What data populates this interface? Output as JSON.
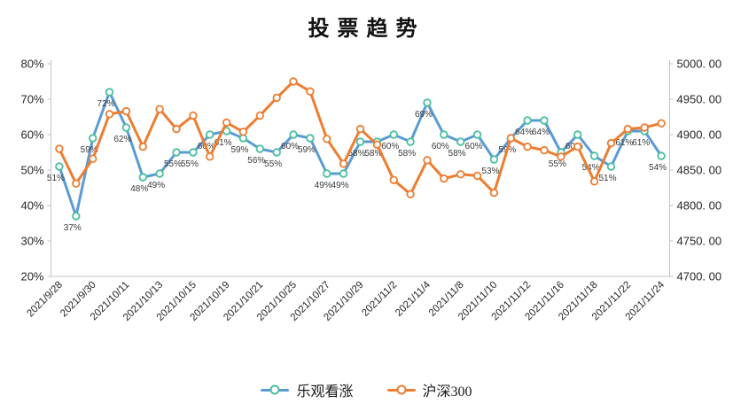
{
  "title": "投票趋势",
  "legend": {
    "items": [
      {
        "label": "乐观看涨",
        "color": "#5B9BD5",
        "marker_ring": "#4BBFA0"
      },
      {
        "label": "沪深300",
        "color": "#ED7D31",
        "marker_ring": "#ED7D31"
      }
    ]
  },
  "chart_data": {
    "type": "line",
    "title": "投票趋势",
    "point_count": 37,
    "x_tick_every": 2,
    "x_tick_labels": [
      "2021/9/28",
      "2021/9/30",
      "2021/10/11",
      "2021/10/13",
      "2021/10/15",
      "2021/10/19",
      "2021/10/21",
      "2021/10/25",
      "2021/10/27",
      "2021/10/29",
      "2021/11/2",
      "2021/11/4",
      "2021/11/8",
      "2021/11/10",
      "2021/11/12",
      "2021/11/16",
      "2021/11/18",
      "2021/11/22",
      "2021/11/24"
    ],
    "left_axis": {
      "min": 20,
      "max": 80,
      "tick_labels": [
        "80%",
        "70%",
        "60%",
        "50%",
        "40%",
        "30%",
        "20%"
      ]
    },
    "right_axis": {
      "min": 4700,
      "max": 5000,
      "tick_labels": [
        "5000. 00",
        "4950. 00",
        "4900. 00",
        "4850. 00",
        "4800. 00",
        "4750. 00",
        "4700. 00"
      ]
    },
    "grid": false,
    "legend_position": "bottom",
    "series": [
      {
        "name": "乐观看涨",
        "axis": "left",
        "color": "#5B9BD5",
        "marker_ring": "#4BBFA0",
        "values": [
          51,
          37,
          59,
          72,
          62,
          48,
          49,
          55,
          55,
          60,
          61,
          59,
          56,
          55,
          60,
          59,
          49,
          49,
          58,
          58,
          60,
          58,
          69,
          60,
          58,
          60,
          53,
          59,
          64,
          64,
          55,
          60,
          54,
          51,
          61,
          61,
          54
        ],
        "data_labels": [
          "51%",
          "37%",
          "59%",
          "72%",
          "62%",
          "48%",
          "49%",
          "55%",
          "55%",
          "60%",
          "61%",
          "59%",
          "56%",
          "55%",
          "60%",
          "59%",
          "49%",
          "49%",
          "58%",
          "58%",
          "60%",
          "58%",
          "69%",
          "60%",
          "58%",
          "60%",
          "53%",
          "59%",
          "64%",
          "64%",
          "55%",
          "60%",
          "54%",
          "51%",
          "61%",
          "61%",
          "54%"
        ]
      },
      {
        "name": "沪深300",
        "axis": "right",
        "color": "#ED7D31",
        "marker_ring": "#ED7D31",
        "values": [
          4880,
          4831,
          4866,
          4929,
          4933,
          4883,
          4936,
          4908,
          4927,
          4869,
          4917,
          4904,
          4927,
          4952,
          4975,
          4961,
          4894,
          4859,
          4908,
          4886,
          4836,
          4816,
          4864,
          4838,
          4844,
          4842,
          4818,
          4895,
          4883,
          4878,
          4869,
          4883,
          4834,
          4888,
          4908,
          4910,
          4916
        ],
        "data_labels": []
      }
    ]
  }
}
